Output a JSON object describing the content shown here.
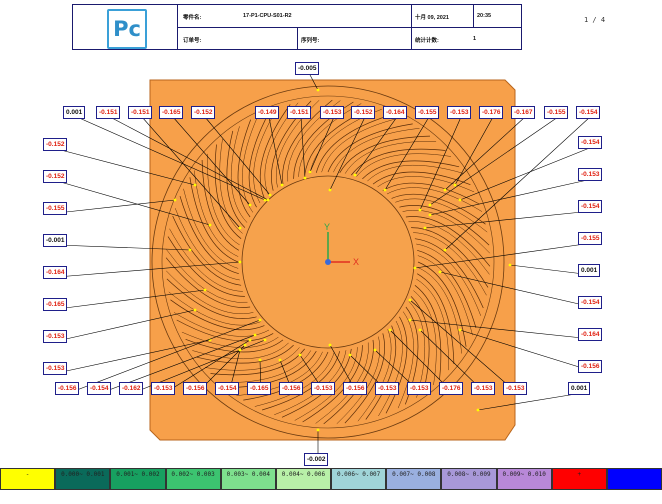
{
  "header": {
    "logo_text": "Pc",
    "part_name_label": "零件名:",
    "part_name_value": "17-P1-CPU-S01-R2",
    "date_value": "十月 09, 2021",
    "time_value": "20:35",
    "order_label": "订单号:",
    "serial_label": "序列号:",
    "stats_label": "统计计数:",
    "stats_value": "1",
    "page": "1 / 4"
  },
  "colors": {
    "part_fill": "#f7a04a",
    "part_edge": "#b8651c",
    "label_border": "#1f1f8a",
    "deviation_text": "#e02010",
    "leader_line": "#000000",
    "axis_y": "#2aa84a",
    "axis_x": "#e03020",
    "axis_z": "#3a6ad8"
  },
  "axes": {
    "x_label": "X",
    "y_label": "Y"
  },
  "labels": [
    {
      "t": "0.001"
    },
    {
      "t": "-0.151"
    },
    {
      "t": "-0.151"
    },
    {
      "t": "-0.165"
    },
    {
      "t": "-0.152"
    },
    {
      "t": "-0.149"
    },
    {
      "t": "-0.151"
    },
    {
      "t": "-0.153"
    },
    {
      "t": "-0.152"
    },
    {
      "t": "-0.164"
    },
    {
      "t": "-0.155"
    },
    {
      "t": "-0.153"
    },
    {
      "t": "-0.176"
    },
    {
      "t": "-0.167"
    },
    {
      "t": "-0.155"
    },
    {
      "t": "-0.154"
    },
    {
      "t": "-0.005"
    },
    {
      "t": "-0.152"
    },
    {
      "t": "-0.152"
    },
    {
      "t": "-0.155"
    },
    {
      "t": "-0.001"
    },
    {
      "t": "-0.164"
    },
    {
      "t": "-0.165"
    },
    {
      "t": "-0.153"
    },
    {
      "t": "-0.153"
    },
    {
      "t": "-0.154"
    },
    {
      "t": "-0.153"
    },
    {
      "t": "-0.154"
    },
    {
      "t": "-0.155"
    },
    {
      "t": "0.001"
    },
    {
      "t": "-0.154"
    },
    {
      "t": "-0.164"
    },
    {
      "t": "-0.156"
    },
    {
      "t": "0.001"
    },
    {
      "t": "-0.156"
    },
    {
      "t": "-0.154"
    },
    {
      "t": "-0.162"
    },
    {
      "t": "-0.153"
    },
    {
      "t": "-0.156"
    },
    {
      "t": "-0.154"
    },
    {
      "t": "-0.165"
    },
    {
      "t": "-0.156"
    },
    {
      "t": "-0.153"
    },
    {
      "t": "-0.156"
    },
    {
      "t": "-0.153"
    },
    {
      "t": "-0.153"
    },
    {
      "t": "-0.176"
    },
    {
      "t": "-0.153"
    },
    {
      "t": "-0.153"
    },
    {
      "t": "-0.002"
    }
  ],
  "legend": [
    {
      "t": "-",
      "color": "#ffff00"
    },
    {
      "t": "0.000~ 0.001",
      "color": "#0a6a5a"
    },
    {
      "t": "0.001~ 0.002",
      "color": "#17a060"
    },
    {
      "t": "0.002~ 0.003",
      "color": "#3cc470"
    },
    {
      "t": "0.003~ 0.004",
      "color": "#7ee08e"
    },
    {
      "t": "0.004~ 0.006",
      "color": "#b8f0a8"
    },
    {
      "t": "0.006~ 0.007",
      "color": "#a0d4d8"
    },
    {
      "t": "0.007~ 0.008",
      "color": "#9ab0e0"
    },
    {
      "t": "0.008~ 0.009",
      "color": "#a898d8"
    },
    {
      "t": "0.009~ 0.010",
      "color": "#b888d8"
    },
    {
      "t": "+",
      "color": "#ff0000"
    },
    {
      "t": "",
      "color": "#0000ff"
    }
  ]
}
